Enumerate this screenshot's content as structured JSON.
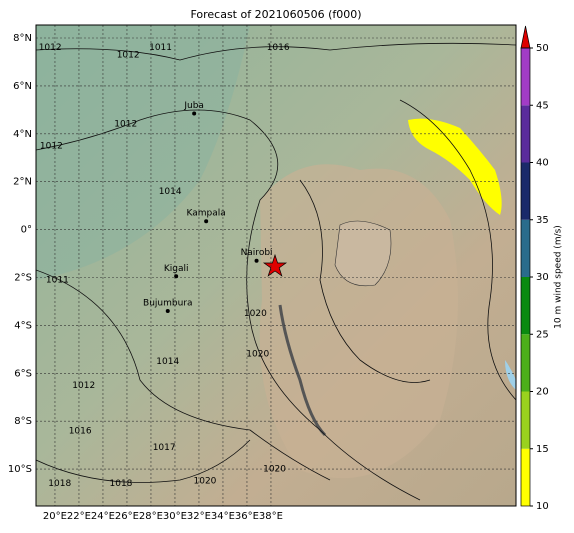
{
  "title": "Forecast of 2021060506 (f000)",
  "lon_ticks": [
    {
      "value": 20,
      "label": "20°E"
    },
    {
      "value": 22,
      "label": "22°E"
    },
    {
      "value": 24,
      "label": "24°E"
    },
    {
      "value": 26,
      "label": "26°E"
    },
    {
      "value": 28,
      "label": "28°E"
    },
    {
      "value": 30,
      "label": "30°E"
    },
    {
      "value": 32,
      "label": "32°E"
    },
    {
      "value": 34,
      "label": "34°E"
    },
    {
      "value": 36,
      "label": "36°E"
    },
    {
      "value": 38,
      "label": "38°E"
    }
  ],
  "lat_ticks": [
    {
      "value": 8,
      "label": "8°N"
    },
    {
      "value": 6,
      "label": "6°N"
    },
    {
      "value": 4,
      "label": "4°N"
    },
    {
      "value": 2,
      "label": "2°N"
    },
    {
      "value": 0,
      "label": "0°"
    },
    {
      "value": -2,
      "label": "2°S"
    },
    {
      "value": -4,
      "label": "4°S"
    },
    {
      "value": -6,
      "label": "6°S"
    },
    {
      "value": -8,
      "label": "8°S"
    },
    {
      "value": -10,
      "label": "10°S"
    }
  ],
  "cities": [
    {
      "name": "Juba",
      "lon": 31.6,
      "lat": 4.85
    },
    {
      "name": "Kampala",
      "lon": 32.6,
      "lat": 0.35
    },
    {
      "name": "Kigali",
      "lon": 30.1,
      "lat": -1.95
    },
    {
      "name": "Bujumbura",
      "lon": 29.4,
      "lat": -3.4
    },
    {
      "name": "Nairobi",
      "lon": 36.8,
      "lat": -1.3
    }
  ],
  "isobar_labels": [
    {
      "value": 1012,
      "lon": 19.6,
      "lat": 7.6
    },
    {
      "value": 1012,
      "lon": 26.1,
      "lat": 7.3
    },
    {
      "value": 1011,
      "lon": 28.8,
      "lat": 7.6
    },
    {
      "value": 1016,
      "lon": 38.6,
      "lat": 7.6
    },
    {
      "value": 1012,
      "lon": 25.9,
      "lat": 4.4
    },
    {
      "value": 1012,
      "lon": 19.7,
      "lat": 3.5
    },
    {
      "value": 1014,
      "lon": 29.6,
      "lat": 1.6
    },
    {
      "value": 1011,
      "lon": 20.2,
      "lat": -2.1
    },
    {
      "value": 1020,
      "lon": 36.7,
      "lat": -3.5
    },
    {
      "value": 1020,
      "lon": 36.9,
      "lat": -5.2
    },
    {
      "value": 1014,
      "lon": 29.4,
      "lat": -5.5
    },
    {
      "value": 1012,
      "lon": 22.4,
      "lat": -6.5
    },
    {
      "value": 1016,
      "lon": 22.1,
      "lat": -8.4
    },
    {
      "value": 1017,
      "lon": 29.1,
      "lat": -9.1
    },
    {
      "value": 1018,
      "lon": 20.4,
      "lat": -10.6
    },
    {
      "value": 1018,
      "lon": 25.5,
      "lat": -10.6
    },
    {
      "value": 1020,
      "lon": 32.5,
      "lat": -10.5
    },
    {
      "value": 1020,
      "lon": 38.3,
      "lat": -10
    }
  ],
  "colorbar": {
    "label": "10 m wind speed (m/s)",
    "lim": [
      10,
      50
    ],
    "ticks": [
      10,
      15,
      20,
      25,
      30,
      35,
      40,
      45,
      50
    ],
    "colors": [
      "#ffff00",
      "#9ad21e",
      "#4caf1a",
      "#0a8a10",
      "#2a6c8c",
      "#1a2a6a",
      "#5a2c9c",
      "#a23cc6"
    ],
    "extend_color": "#dd0000"
  }
}
